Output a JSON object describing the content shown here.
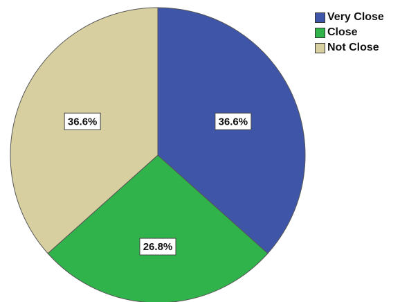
{
  "chart_data": {
    "type": "pie",
    "title": "",
    "categories": [
      "Very Close",
      "Close",
      "Not Close"
    ],
    "values": [
      36.6,
      26.8,
      36.6
    ],
    "value_labels": [
      "36.6%",
      "26.8%",
      "36.6%"
    ],
    "colors": [
      "#3f56a8",
      "#2fb34a",
      "#d7cf9f"
    ],
    "start": "12 o'clock",
    "direction": "clockwise",
    "legend": {
      "placement": "top-right",
      "entries": [
        "Very Close",
        "Close",
        "Not Close"
      ]
    }
  }
}
